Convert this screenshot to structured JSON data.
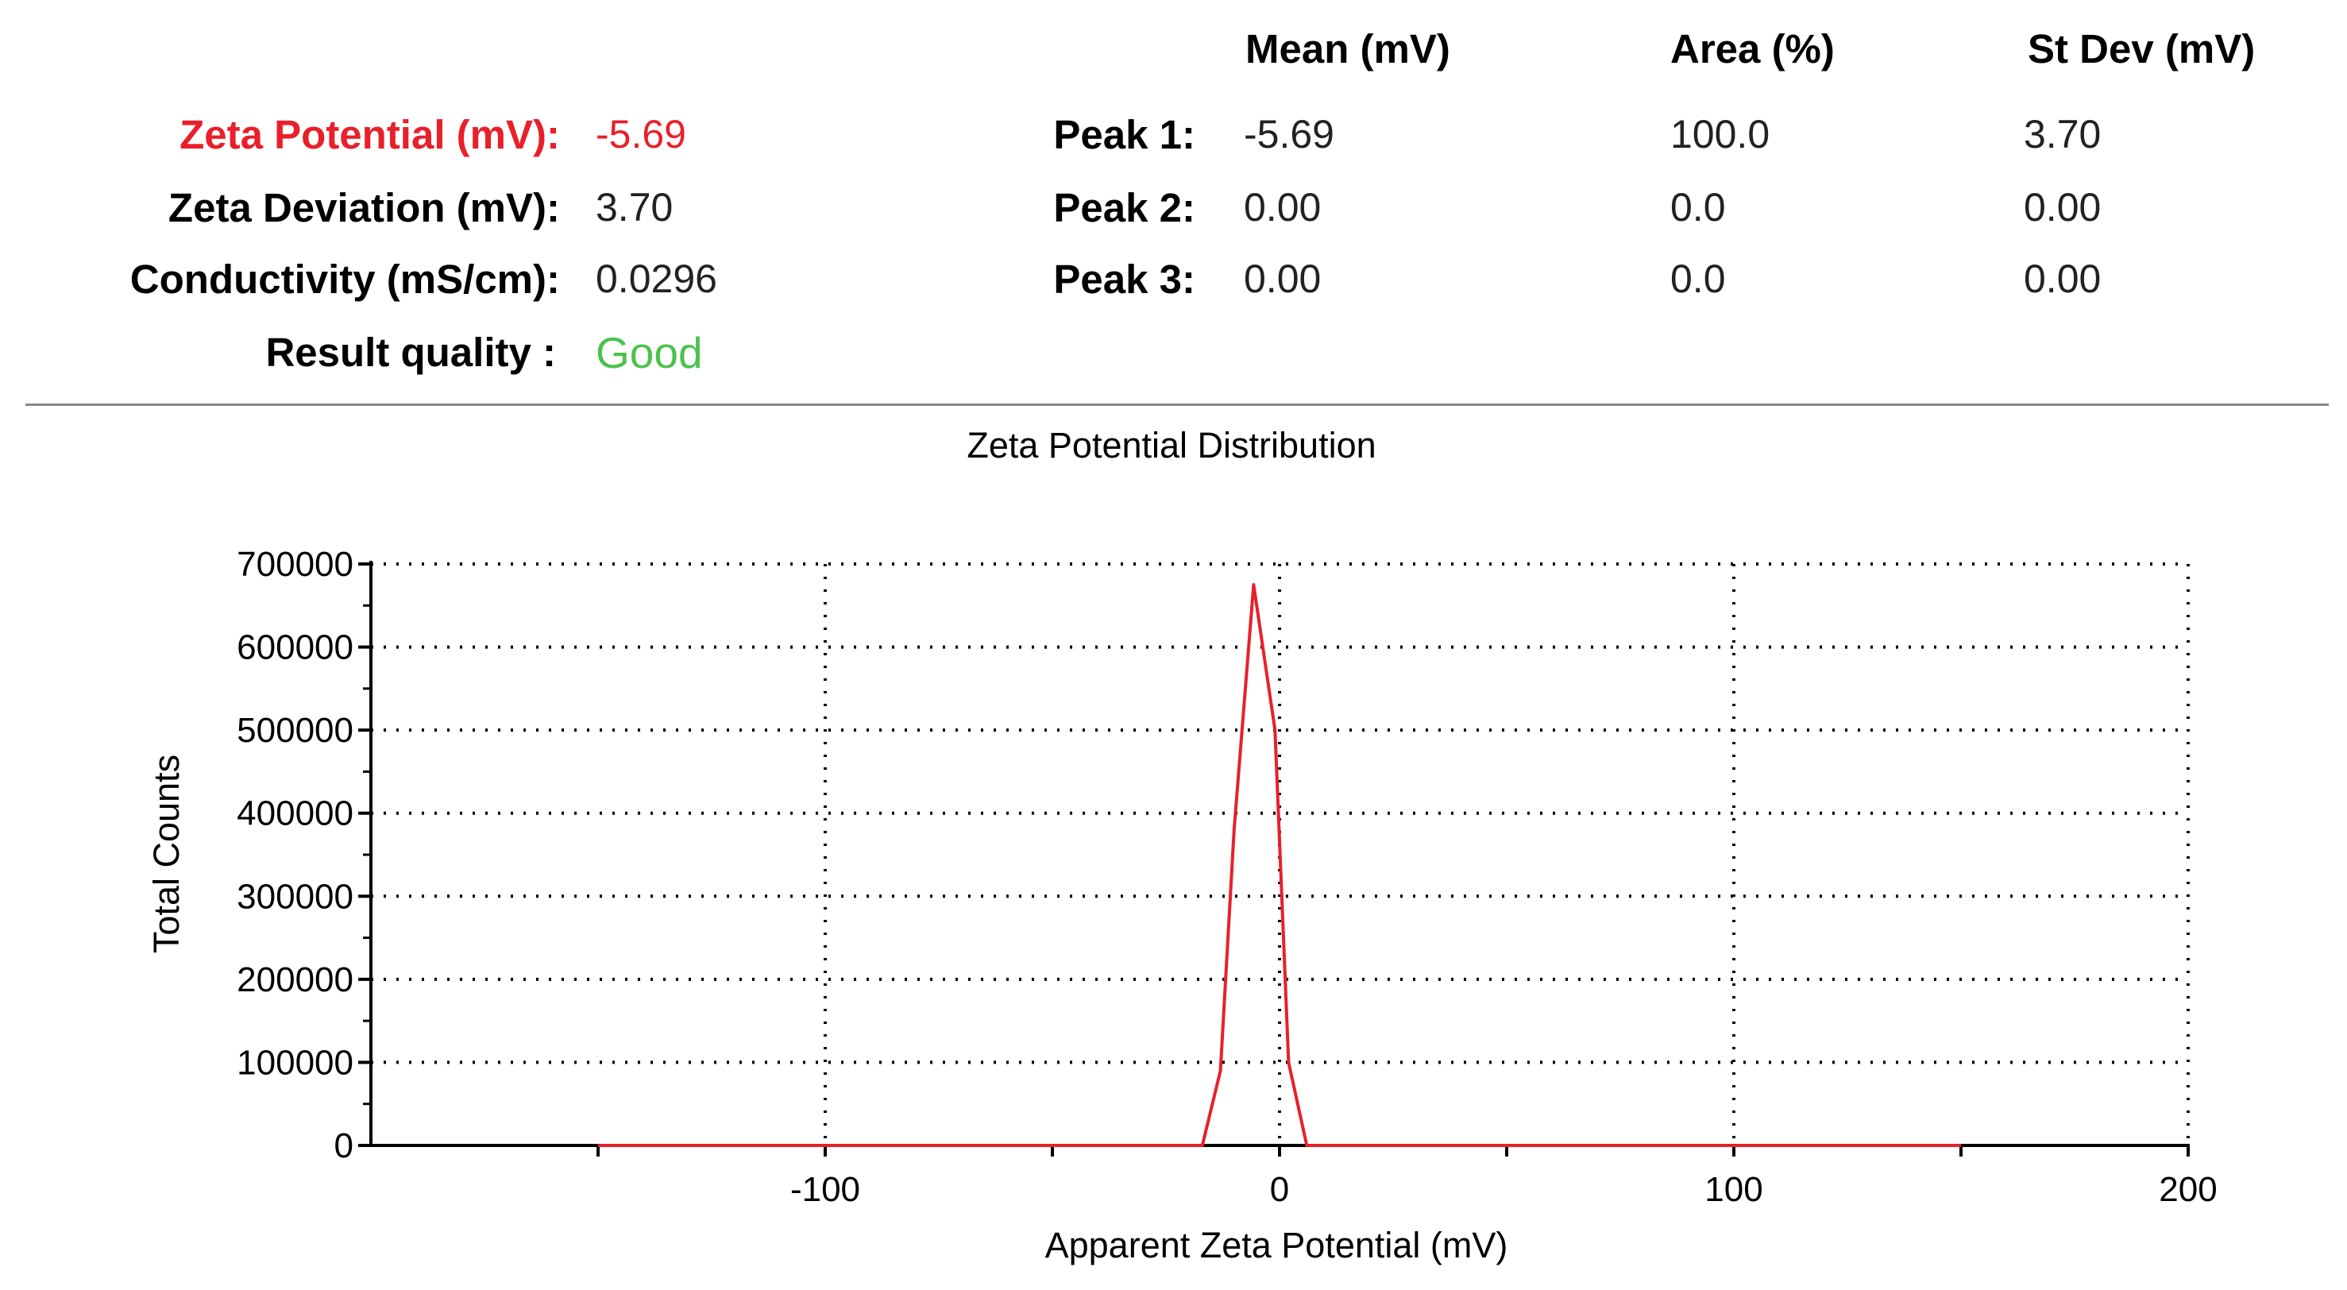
{
  "summary": {
    "zeta_potential": {
      "label": "Zeta Potential (mV):",
      "value": "-5.69",
      "color": "#e8202a"
    },
    "zeta_deviation": {
      "label": "Zeta Deviation (mV):",
      "value": "3.70"
    },
    "conductivity": {
      "label": "Conductivity (mS/cm):",
      "value": "0.0296"
    },
    "result_quality": {
      "label": "Result quality :",
      "value": "Good",
      "color": "#4cc24c"
    }
  },
  "peaks_table": {
    "headers": [
      "Mean (mV)",
      "Area (%)",
      "St Dev (mV)"
    ],
    "rows": [
      {
        "label": "Peak 1:",
        "mean": "-5.69",
        "area": "100.0",
        "stdev": "3.70"
      },
      {
        "label": "Peak 2:",
        "mean": "0.00",
        "area": "0.0",
        "stdev": "0.00"
      },
      {
        "label": "Peak 3:",
        "mean": "0.00",
        "area": "0.0",
        "stdev": "0.00"
      }
    ]
  },
  "chart_data": {
    "type": "line",
    "title": "Zeta Potential Distribution",
    "xlabel": "Apparent Zeta Potential (mV)",
    "ylabel": "Total Counts",
    "xlim": [
      -200,
      200
    ],
    "ylim": [
      0,
      700000
    ],
    "xticks": [
      -100,
      0,
      100,
      200
    ],
    "xtick_labels": [
      "-100",
      "0",
      "100",
      "200"
    ],
    "yticks": [
      0,
      100000,
      200000,
      300000,
      400000,
      500000,
      600000,
      700000
    ],
    "ytick_labels": [
      "0",
      "100000",
      "200000",
      "300000",
      "400000",
      "500000",
      "600000",
      "700000"
    ],
    "grid": true,
    "series": [
      {
        "color": "#e8202a",
        "x": [
          -150,
          -17,
          -13,
          -10,
          -5.7,
          -1,
          2,
          6,
          150
        ],
        "y": [
          0,
          0,
          90000,
          380000,
          675000,
          500000,
          100000,
          0,
          0
        ]
      }
    ]
  }
}
